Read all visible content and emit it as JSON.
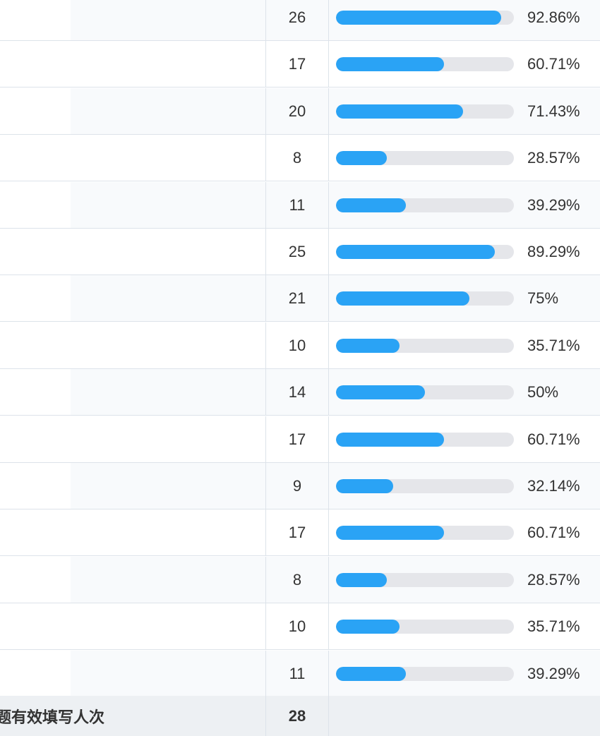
{
  "rows": [
    {
      "count": "26",
      "percent": "92.86%",
      "fraction": 0.9286
    },
    {
      "count": "17",
      "percent": "60.71%",
      "fraction": 0.6071
    },
    {
      "count": "20",
      "percent": "71.43%",
      "fraction": 0.7143
    },
    {
      "count": "8",
      "percent": "28.57%",
      "fraction": 0.2857
    },
    {
      "count": "11",
      "percent": "39.29%",
      "fraction": 0.3929
    },
    {
      "count": "25",
      "percent": "89.29%",
      "fraction": 0.8929
    },
    {
      "count": "21",
      "percent": "75%",
      "fraction": 0.75
    },
    {
      "count": "10",
      "percent": "35.71%",
      "fraction": 0.3571
    },
    {
      "count": "14",
      "percent": "50%",
      "fraction": 0.5
    },
    {
      "count": "17",
      "percent": "60.71%",
      "fraction": 0.6071
    },
    {
      "count": "9",
      "percent": "32.14%",
      "fraction": 0.3214
    },
    {
      "count": "17",
      "percent": "60.71%",
      "fraction": 0.6071
    },
    {
      "count": "8",
      "percent": "28.57%",
      "fraction": 0.2857
    },
    {
      "count": "10",
      "percent": "35.71%",
      "fraction": 0.3571
    },
    {
      "count": "11",
      "percent": "39.29%",
      "fraction": 0.3929
    }
  ],
  "total": {
    "label": "题有效填写人次",
    "count": "28"
  },
  "colors": {
    "bar_fill": "#2aa3f5",
    "bar_track": "#e5e6ea",
    "row_alt": "#f8fafc",
    "total_bg": "#edf0f3"
  }
}
